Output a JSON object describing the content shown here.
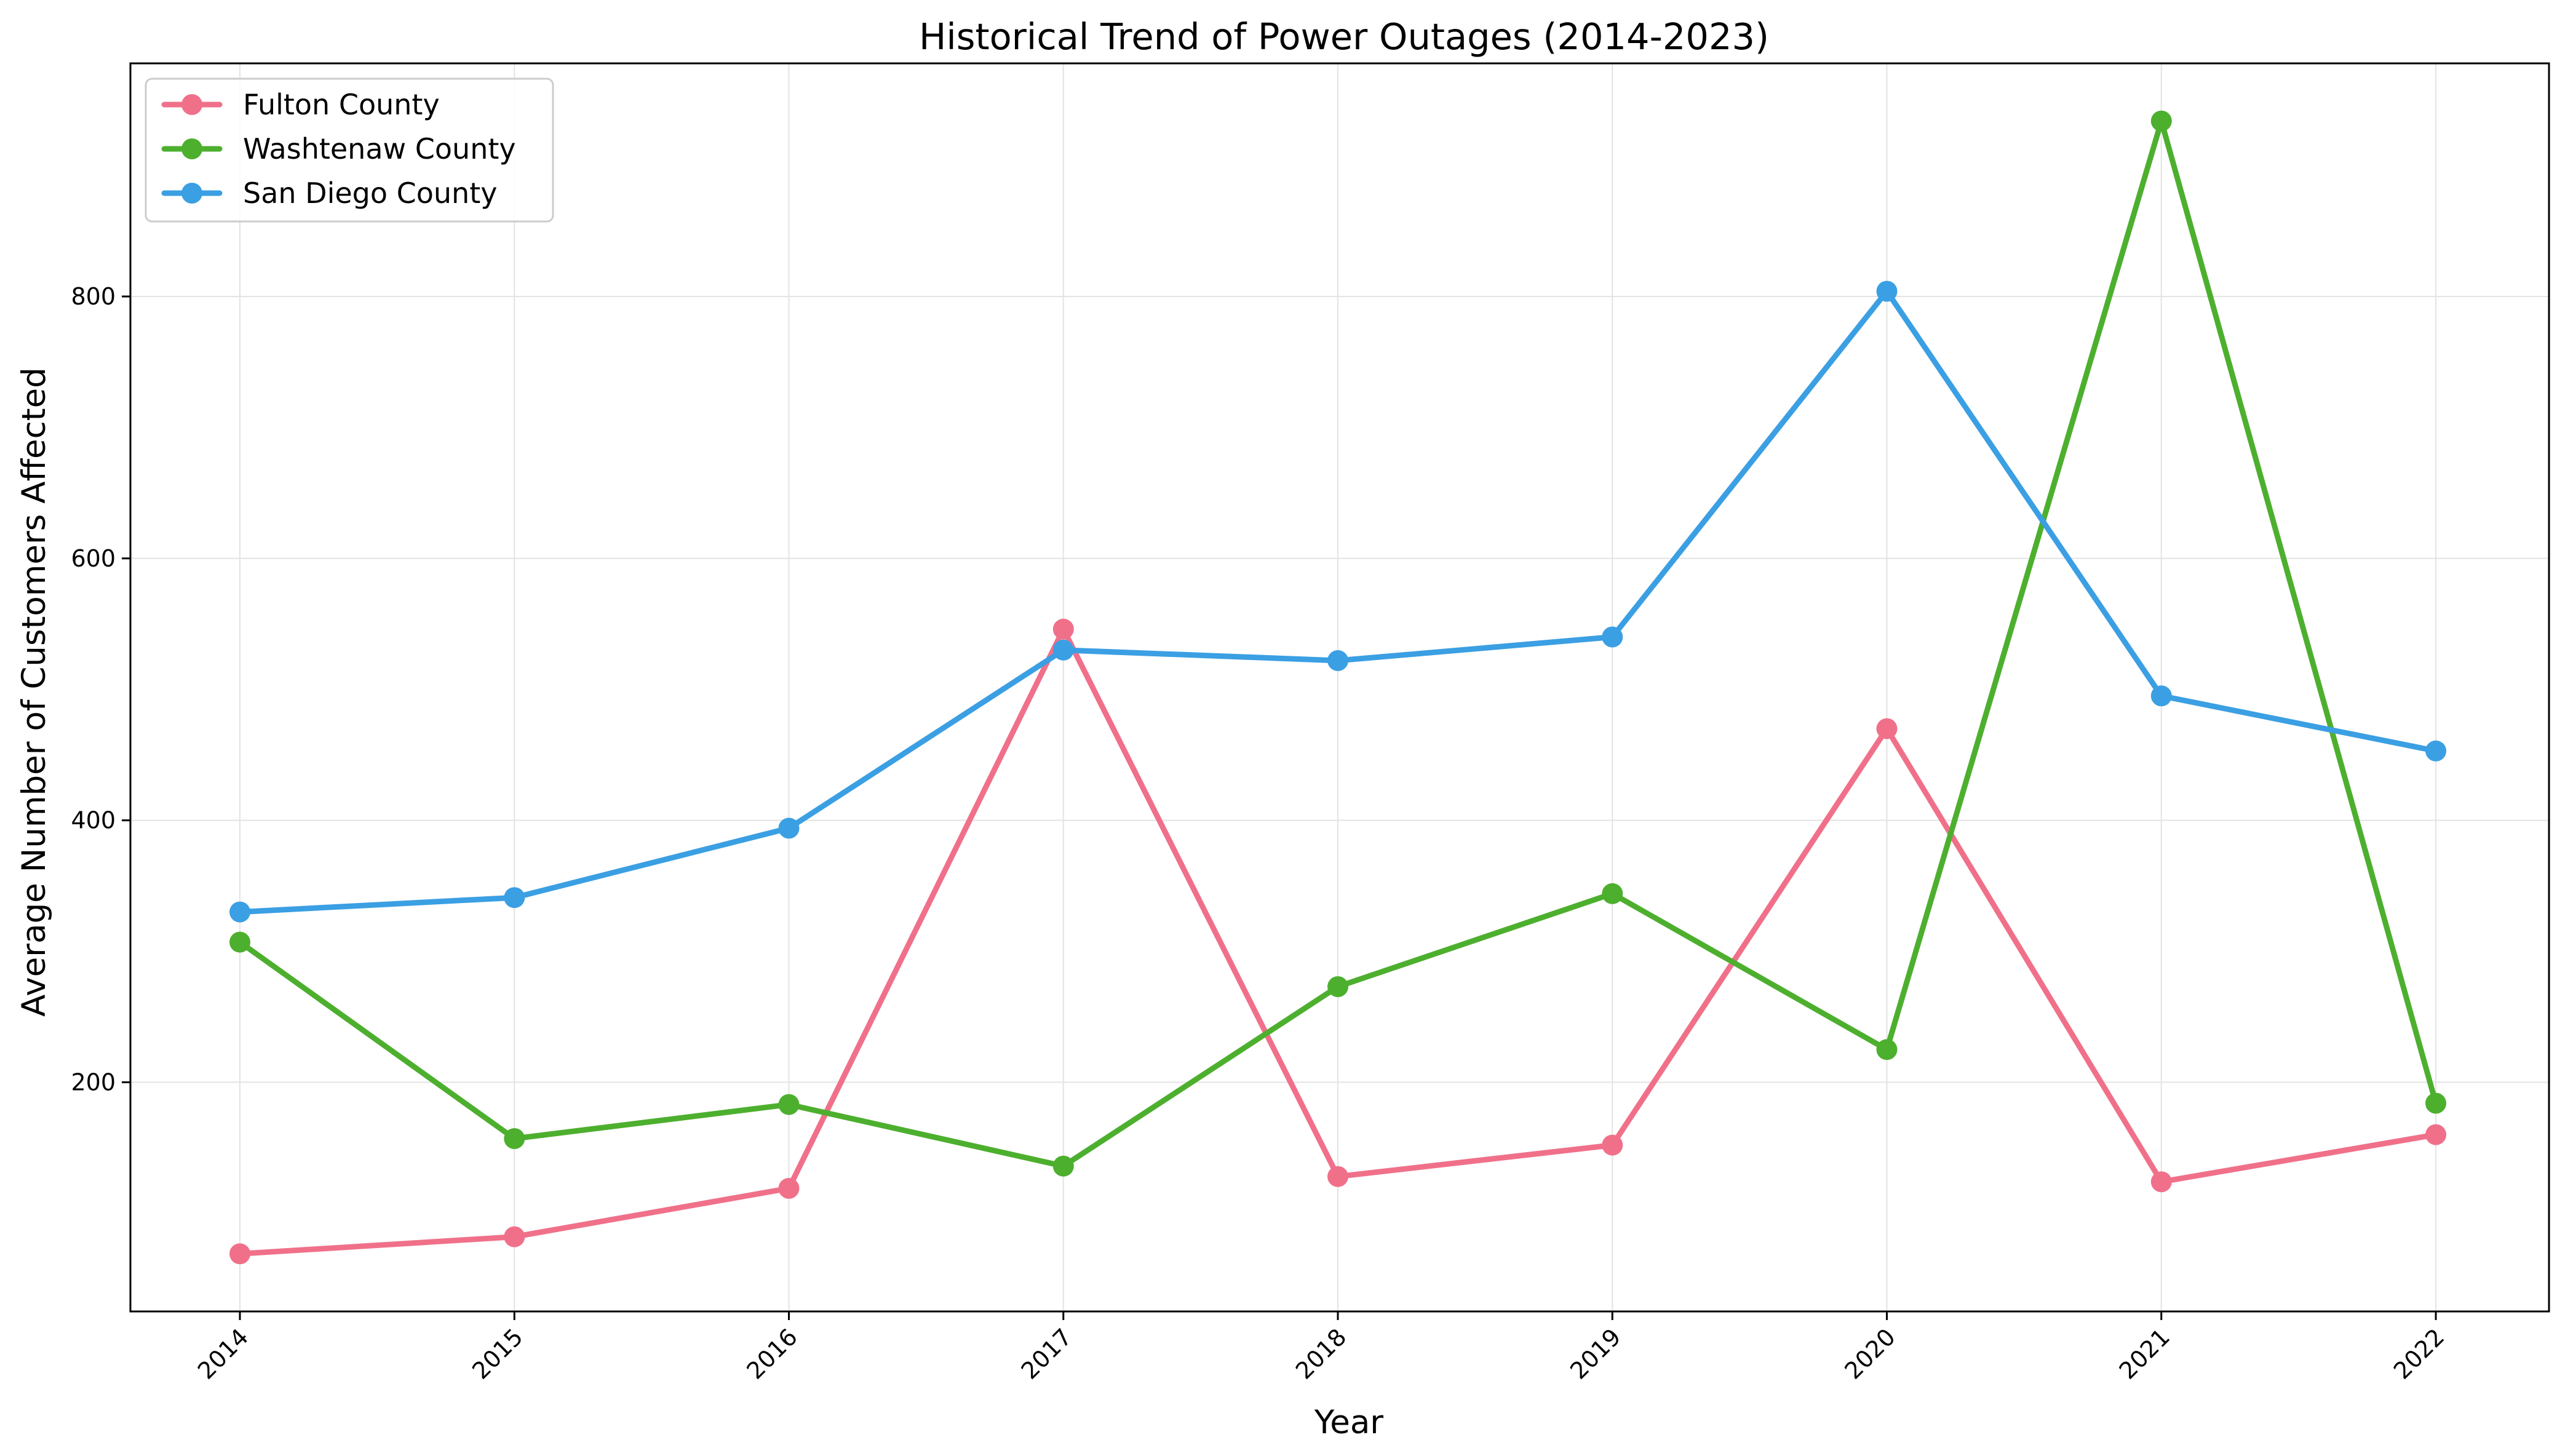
{
  "chart_data": {
    "type": "line",
    "title": "Historical Trend of Power Outages (2014-2023)",
    "xlabel": "Year",
    "ylabel": "Average Number of Customers Affected",
    "x": [
      "2014",
      "2015",
      "2016",
      "2017",
      "2018",
      "2019",
      "2020",
      "2021",
      "2022"
    ],
    "yticks": [
      200,
      400,
      600,
      800
    ],
    "ylim": [
      25,
      978
    ],
    "grid": true,
    "legend_position": "top-left",
    "series": [
      {
        "name": "Fulton County",
        "color": "#f0708a",
        "values": [
          69,
          82,
          119,
          546,
          128,
          152,
          470,
          124,
          160
        ]
      },
      {
        "name": "Washtenaw County",
        "color": "#4daf2e",
        "values": [
          307,
          157,
          183,
          136,
          273,
          344,
          225,
          934,
          184
        ]
      },
      {
        "name": "San Diego County",
        "color": "#3b9fe3",
        "values": [
          330,
          341,
          394,
          530,
          522,
          540,
          804,
          495,
          453
        ]
      }
    ]
  }
}
